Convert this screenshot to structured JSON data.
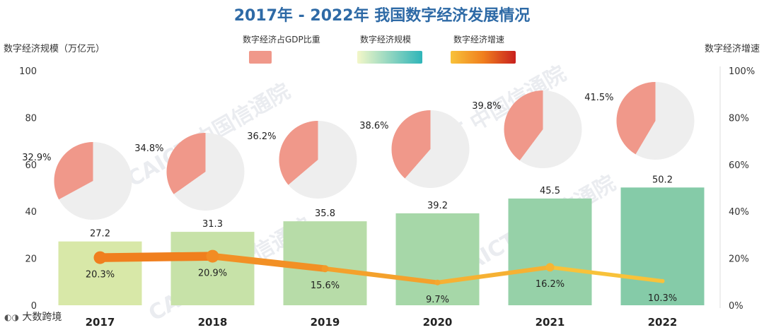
{
  "title": "2017年 - 2022年 我国数字经济发展情况",
  "left_axis_label": "数字经济规模（万亿元）",
  "right_axis_label": "数字经济增速",
  "legend": {
    "gdp_share": "数字经济占GDP比重",
    "scale": "数字经济规模",
    "growth": "数字经济增速"
  },
  "watermark": "CAICT 中国信通院",
  "source_mark": "大数跨境",
  "colors": {
    "pie_slice": "#f0988a",
    "pie_rest": "#eeeeee",
    "bar_start": "#d8e8a8",
    "bar_end": "#85cba8",
    "line_start": "#f07f1e",
    "line_end": "#f8c23a"
  },
  "chart_data": {
    "type": "bar",
    "title": "2017年 - 2022年 我国数字经济发展情况",
    "categories": [
      "2017",
      "2018",
      "2019",
      "2020",
      "2021",
      "2022"
    ],
    "ylabel": "数字经济规模（万亿元）",
    "y2label": "数字经济增速",
    "ylim": [
      0,
      100
    ],
    "y2lim": [
      0,
      100
    ],
    "yticks": [
      "0",
      "20",
      "40",
      "60",
      "80",
      "100"
    ],
    "y2ticks": [
      "0%",
      "20%",
      "40%",
      "60%",
      "80%",
      "100%"
    ],
    "series": [
      {
        "name": "数字经济规模",
        "type": "bar",
        "values": [
          27.2,
          31.3,
          35.8,
          39.2,
          45.5,
          50.2
        ],
        "labels": [
          "27.2",
          "31.3",
          "35.8",
          "39.2",
          "45.5",
          "50.2"
        ]
      },
      {
        "name": "数字经济增速",
        "type": "line",
        "values": [
          20.3,
          20.9,
          15.6,
          9.7,
          16.2,
          10.3
        ],
        "labels": [
          "20.3%",
          "20.9%",
          "15.6%",
          "9.7%",
          "16.2%",
          "10.3%"
        ]
      },
      {
        "name": "数字经济占GDP比重",
        "type": "pie",
        "values": [
          32.9,
          34.8,
          36.2,
          38.6,
          39.8,
          41.5
        ],
        "labels": [
          "32.9%",
          "34.8%",
          "36.2%",
          "38.6%",
          "39.8%",
          "41.5%"
        ]
      }
    ]
  }
}
